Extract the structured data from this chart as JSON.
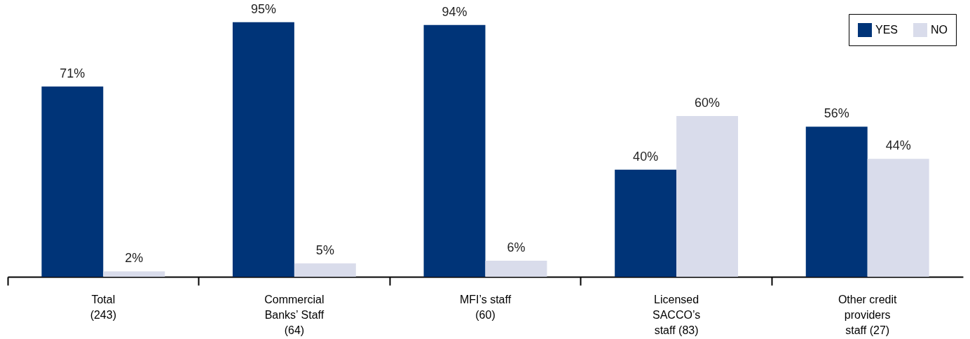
{
  "chart_data": {
    "type": "bar",
    "categories": [
      "Total\n(243)",
      "Commercial\nBanks’ Staff\n(64)",
      "MFI’s staff\n(60)",
      "Licensed\nSACCO’s\nstaff (83)",
      "Other credit\nproviders\nstaff (27)"
    ],
    "series": [
      {
        "name": "YES",
        "color": "#003478",
        "values": [
          71,
          95,
          94,
          40,
          56
        ],
        "value_labels": [
          "71%",
          "95%",
          "94%",
          "40%",
          "56%"
        ]
      },
      {
        "name": "NO",
        "color": "#d9dceb",
        "values": [
          2,
          5,
          6,
          60,
          44
        ],
        "value_labels": [
          "2%",
          "5%",
          "6%",
          "60%",
          "44%"
        ]
      }
    ],
    "legend": "top right",
    "grid": false
  }
}
